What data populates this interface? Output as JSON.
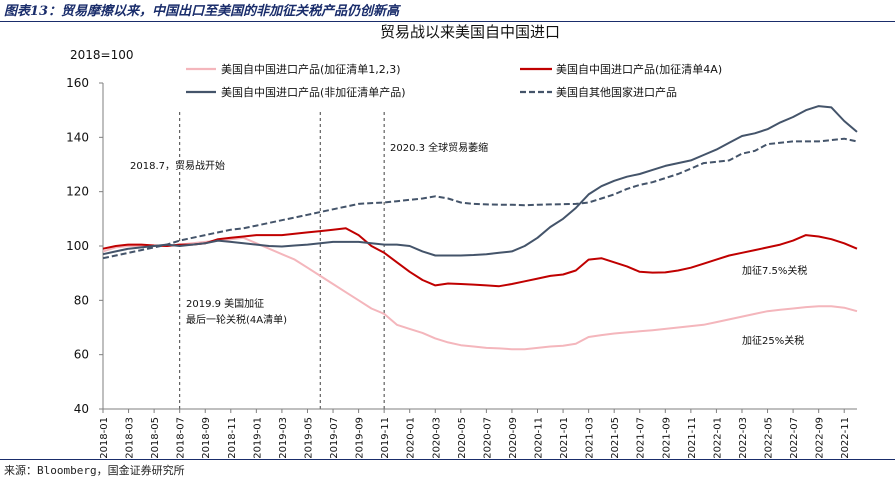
{
  "header": {
    "title": "图表13：贸易摩擦以来，中国出口至美国的非加征关税产品仍创新高"
  },
  "footer": {
    "source": "来源：Bloomberg，国金证券研究所"
  },
  "colors": {
    "pink": "#f4b6bc",
    "red": "#c00000",
    "slate": "#44546a",
    "navy": "#44546a",
    "grid": "#bfbfbf",
    "rule": "#1a2d6b"
  },
  "chart_data": {
    "type": "line",
    "title": "贸易战以来美国自中国进口",
    "unit_label": "2018=100",
    "xlabel": "",
    "ylabel": "",
    "ylim": [
      40,
      160
    ],
    "yticks": [
      "40",
      "60",
      "80",
      "100",
      "120",
      "140",
      "160"
    ],
    "grid": false,
    "legend_position": "top",
    "x": [
      "2018-01",
      "2018-02",
      "2018-03",
      "2018-04",
      "2018-05",
      "2018-06",
      "2018-07",
      "2018-08",
      "2018-09",
      "2018-10",
      "2018-11",
      "2018-12",
      "2019-01",
      "2019-02",
      "2019-03",
      "2019-04",
      "2019-05",
      "2019-06",
      "2019-07",
      "2019-08",
      "2019-09",
      "2019-10",
      "2019-11",
      "2019-12",
      "2020-01",
      "2020-02",
      "2020-03",
      "2020-04",
      "2020-05",
      "2020-06",
      "2020-07",
      "2020-08",
      "2020-09",
      "2020-10",
      "2020-11",
      "2020-12",
      "2021-01",
      "2021-02",
      "2021-03",
      "2021-04",
      "2021-05",
      "2021-06",
      "2021-07",
      "2021-08",
      "2021-09",
      "2021-10",
      "2021-11",
      "2021-12",
      "2022-01",
      "2022-02",
      "2022-03",
      "2022-04",
      "2022-05",
      "2022-06",
      "2022-07",
      "2022-08",
      "2022-09",
      "2022-10",
      "2022-11",
      "2022-12"
    ],
    "xticks": [
      "2018-01",
      "2018-03",
      "2018-05",
      "2018-07",
      "2018-09",
      "2018-11",
      "2019-01",
      "2019-03",
      "2019-05",
      "2019-07",
      "2019-09",
      "2019-11",
      "2020-01",
      "2020-03",
      "2020-05",
      "2020-07",
      "2020-09",
      "2020-11",
      "2021-01",
      "2021-03",
      "2021-05",
      "2021-07",
      "2021-09",
      "2021-11",
      "2022-01",
      "2022-03",
      "2022-05",
      "2022-07",
      "2022-09",
      "2022-11"
    ],
    "series": [
      {
        "name": "美国自中国进口产品(加征清单1,2,3)",
        "color": "#f4b6bc",
        "dash": false,
        "width": 2,
        "values": [
          98,
          99.5,
          100,
          100,
          100,
          100,
          100.5,
          101,
          101.5,
          102,
          102.5,
          103,
          101,
          99,
          97,
          95,
          92,
          89,
          86,
          83,
          80,
          77,
          75,
          71,
          69.5,
          68,
          66,
          64.5,
          63.5,
          63,
          62.5,
          62.3,
          62,
          62,
          62.5,
          63,
          63.3,
          64,
          66.5,
          67.2,
          67.8,
          68.2,
          68.6,
          69,
          69.5,
          70,
          70.5,
          71,
          72,
          73,
          74,
          75,
          76,
          76.5,
          77,
          77.5,
          77.8,
          77.8,
          77.3,
          76
        ]
      },
      {
        "name": "美国自中国进口产品(加征清单4A)",
        "color": "#c00000",
        "dash": false,
        "width": 2,
        "values": [
          99,
          100,
          100.5,
          100.5,
          100.2,
          100,
          100.5,
          100.5,
          101,
          102.5,
          103,
          103.5,
          104,
          104,
          104,
          104.5,
          105,
          105.5,
          106,
          106.5,
          104,
          100,
          97.5,
          94,
          90.5,
          87.5,
          85.5,
          86.2,
          86,
          85.8,
          85.5,
          85.2,
          86,
          87,
          88,
          89,
          89.5,
          91,
          95,
          95.5,
          94,
          92.5,
          90.5,
          90.2,
          90.3,
          91,
          92,
          93.5,
          95,
          96.5,
          97.5,
          98.5,
          99.5,
          100.5,
          102,
          104,
          103.5,
          102.5,
          101,
          99
        ]
      },
      {
        "name": "美国自中国进口产品(非加征清单产品)",
        "color": "#44546a",
        "dash": false,
        "width": 2,
        "values": [
          97,
          98,
          99,
          99.5,
          100,
          100.5,
          100,
          100.5,
          101,
          102,
          101.5,
          101,
          100.5,
          100,
          99.8,
          100.2,
          100.5,
          101,
          101.5,
          101.5,
          101.5,
          101,
          100.5,
          100.5,
          100,
          98,
          96.5,
          96.5,
          96.5,
          96.7,
          97,
          97.5,
          98,
          100,
          103,
          107,
          110,
          114,
          119,
          122,
          124,
          125.5,
          126.5,
          128,
          129.5,
          130.5,
          131.5,
          133.5,
          135.5,
          138,
          140.5,
          141.5,
          143,
          145.5,
          147.5,
          150,
          151.5,
          151,
          146,
          142
        ]
      },
      {
        "name": "美国自其他国家进口产品",
        "color": "#44546a",
        "dash": true,
        "width": 2,
        "values": [
          95.5,
          96.5,
          97.5,
          98.5,
          99.5,
          100.5,
          102,
          103,
          104,
          105,
          106,
          106.5,
          107.5,
          108.5,
          109.5,
          110.5,
          111.5,
          112.5,
          113.5,
          114.5,
          115.5,
          115.8,
          116,
          116.5,
          117,
          117.5,
          118.3,
          117.5,
          116,
          115.5,
          115.3,
          115.2,
          115.2,
          115,
          115.2,
          115.3,
          115.4,
          115.5,
          116,
          117.5,
          119,
          121,
          122.5,
          123.5,
          125,
          126.5,
          128.5,
          130.5,
          131,
          131.5,
          134,
          135,
          137.5,
          138,
          138.5,
          138.5,
          138.5,
          139,
          139.5,
          138.5
        ]
      }
    ],
    "vlines": [
      "2018-07",
      "2019-06",
      "2019-11"
    ],
    "annotations": [
      {
        "text": "2018.7，贸易战开始"
      },
      {
        "text": "2019.9 美国加征"
      },
      {
        "text": "最后一轮关税(4A清单)"
      },
      {
        "text": "2020.3 全球贸易萎缩"
      },
      {
        "text": "加征7.5%关税"
      },
      {
        "text": "加征25%关税"
      }
    ]
  }
}
